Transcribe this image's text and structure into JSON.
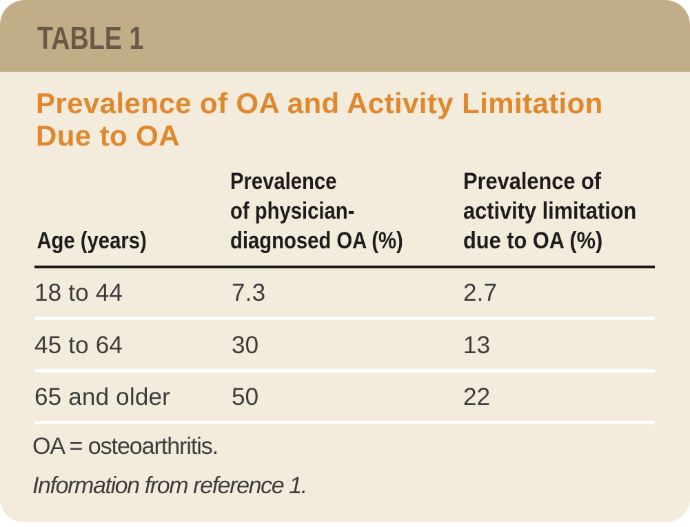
{
  "panel": {
    "band_label": "TABLE 1",
    "band_color": "#c1ad88",
    "body_color": "#f3ecdc",
    "label_color": "#695a48"
  },
  "title": {
    "text": "Prevalence of OA and Activity Limitation Due to OA",
    "color": "#e0882e"
  },
  "table": {
    "headers": [
      "Age (years)",
      "Prevalence\nof physician-\ndiagnosed OA (%)",
      "Prevalence of\nactivity limitation\ndue to OA (%)"
    ],
    "rows": [
      {
        "age": "18 to 44",
        "prevalence_oa": "7.3",
        "activity_limitation": "2.7"
      },
      {
        "age": "45 to 64",
        "prevalence_oa": "30",
        "activity_limitation": "13"
      },
      {
        "age": "65 and older",
        "prevalence_oa": "50",
        "activity_limitation": "22"
      }
    ]
  },
  "footnotes": {
    "abbreviation": "OA = osteoarthritis.",
    "source": "Information from reference 1."
  }
}
